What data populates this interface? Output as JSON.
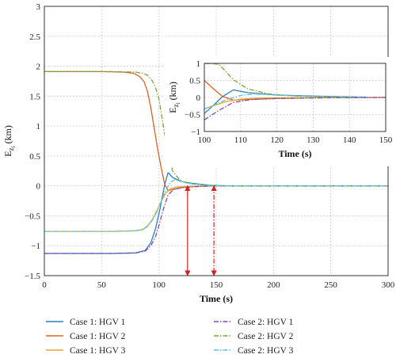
{
  "chart_data": [
    {
      "type": "line",
      "title": "",
      "xlabel": "Time (s)",
      "ylabel": "E",
      "ylabel_sub": "z",
      "ylabel_subsub": "i",
      "ylabel_unit": " (km)",
      "xlim": [
        0,
        300
      ],
      "ylim": [
        -1.5,
        3
      ],
      "xticks": [
        "0",
        "50",
        "100",
        "150",
        "200",
        "250",
        "300"
      ],
      "yticks": [
        "−1.5",
        "−1",
        "−0.5",
        "0",
        "0.5",
        "1",
        "1.5",
        "2",
        "2.5",
        "3"
      ],
      "grid": true,
      "legend_position": "below",
      "series": [
        {
          "name": "Case 1: HGV 1",
          "color": "#2f7bbf",
          "dash": "solid",
          "x": [
            0,
            60,
            80,
            88,
            93,
            97,
            101,
            105,
            108,
            112,
            120,
            130,
            145,
            160,
            300
          ],
          "y": [
            -1.13,
            -1.13,
            -1.12,
            -1.08,
            -0.95,
            -0.72,
            -0.38,
            0.02,
            0.22,
            0.14,
            0.07,
            0.04,
            0.01,
            0,
            0
          ]
        },
        {
          "name": "Case 1: HGV 2",
          "color": "#d9622b",
          "dash": "solid",
          "x": [
            0,
            50,
            70,
            78,
            83,
            87,
            90,
            93,
            96,
            99,
            102,
            105,
            108,
            112,
            120,
            130,
            150,
            300
          ],
          "y": [
            1.91,
            1.91,
            1.9,
            1.88,
            1.83,
            1.74,
            1.58,
            1.3,
            0.95,
            0.6,
            0.3,
            0.03,
            -0.08,
            -0.06,
            -0.03,
            -0.01,
            0,
            0
          ]
        },
        {
          "name": "Case 1: HGV 3",
          "color": "#e8a628",
          "dash": "solid",
          "x": [
            0,
            60,
            80,
            86,
            90,
            94,
            98,
            102,
            106,
            110,
            115,
            125,
            140,
            300
          ],
          "y": [
            -0.76,
            -0.76,
            -0.75,
            -0.73,
            -0.67,
            -0.57,
            -0.42,
            -0.26,
            -0.12,
            -0.05,
            -0.02,
            -0.01,
            0,
            0
          ]
        },
        {
          "name": "Case 2: HGV 1",
          "color": "#7b4bb0",
          "dash": "dashdot",
          "x": [
            0,
            60,
            80,
            88,
            93,
            97,
            100,
            104,
            108,
            113,
            120,
            135,
            150,
            300
          ],
          "y": [
            -1.13,
            -1.13,
            -1.12,
            -1.09,
            -1.0,
            -0.85,
            -0.66,
            -0.38,
            -0.15,
            -0.06,
            -0.03,
            -0.01,
            0,
            0
          ]
        },
        {
          "name": "Case 2: HGV 2",
          "color": "#76a83a",
          "dash": "dashdot",
          "x": [
            0,
            60,
            80,
            86,
            90,
            94,
            97,
            100,
            104,
            108,
            112,
            118,
            125,
            140,
            155,
            300
          ],
          "y": [
            1.91,
            1.91,
            1.9,
            1.88,
            1.85,
            1.76,
            1.65,
            1.45,
            0.98,
            0.52,
            0.25,
            0.1,
            0.04,
            0.01,
            0,
            0
          ]
        },
        {
          "name": "Case 2: HGV 3",
          "color": "#56c4e4",
          "dash": "dashdot",
          "x": [
            0,
            60,
            80,
            86,
            90,
            94,
            98,
            102,
            106,
            110,
            114,
            120,
            130,
            145,
            160,
            300
          ],
          "y": [
            -0.76,
            -0.76,
            -0.75,
            -0.73,
            -0.68,
            -0.58,
            -0.44,
            -0.25,
            -0.07,
            0.06,
            0.1,
            0.07,
            0.03,
            0.01,
            0,
            0
          ]
        }
      ],
      "annotations": [
        {
          "type": "double-arrow",
          "x": 125,
          "y1": 0,
          "y2": -1.5,
          "color": "#d42020",
          "dash": "solid"
        },
        {
          "type": "double-arrow",
          "x": 148,
          "y1": 0,
          "y2": -1.5,
          "color": "#d42020",
          "dash": "dashdot"
        }
      ]
    },
    {
      "type": "line",
      "inset": true,
      "title": "",
      "xlabel": "Time (s)",
      "ylabel": "E",
      "ylabel_sub": "z",
      "ylabel_subsub": "i",
      "ylabel_unit": " (km)",
      "xlim": [
        100,
        150
      ],
      "ylim": [
        -1,
        1
      ],
      "xticks": [
        "100",
        "110",
        "120",
        "130",
        "140",
        "150"
      ],
      "yticks": [
        "−1",
        "−0.5",
        "0",
        "0.5",
        "1"
      ],
      "grid": true
    }
  ]
}
